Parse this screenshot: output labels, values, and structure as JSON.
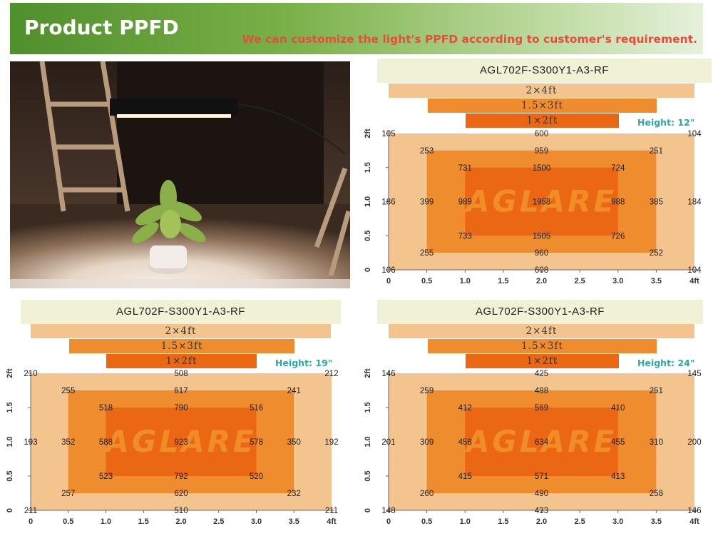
{
  "header": {
    "title": "Product PPFD",
    "subtitle": "We can customize the light's PPFD according to customer's requirement."
  },
  "colors": {
    "outer_zone": "#f4c48e",
    "mid_zone": "#ef8d2e",
    "inner_zone": "#eb6714",
    "height_label": "#2aa9a2",
    "subtitle": "#ee4a3a"
  },
  "panels": [
    {
      "model": "AGL702F-S300Y1-A3-RF",
      "tiers": [
        "2×4ft",
        "1.5×3ft",
        "1×2ft"
      ],
      "height": "Height: 12\"",
      "watermark": "AGLARE",
      "x_ticks": [
        "0",
        "0.5",
        "1.0",
        "1.5",
        "2.0",
        "2.5",
        "3.0",
        "3.5",
        "4ft"
      ],
      "y_ticks": [
        "0",
        "0.5",
        "1.0",
        "1.5",
        "2ft"
      ],
      "points": [
        {
          "x": 0,
          "y": 2,
          "v": "105"
        },
        {
          "x": 2,
          "y": 2,
          "v": "600"
        },
        {
          "x": 4,
          "y": 2,
          "v": "104"
        },
        {
          "x": 0.5,
          "y": 1.75,
          "v": "253"
        },
        {
          "x": 2,
          "y": 1.75,
          "v": "959"
        },
        {
          "x": 3.5,
          "y": 1.75,
          "v": "251"
        },
        {
          "x": 1,
          "y": 1.5,
          "v": "731"
        },
        {
          "x": 2,
          "y": 1.5,
          "v": "1500"
        },
        {
          "x": 3,
          "y": 1.5,
          "v": "724"
        },
        {
          "x": 0,
          "y": 1,
          "v": "186"
        },
        {
          "x": 0.5,
          "y": 1,
          "v": "399"
        },
        {
          "x": 1,
          "y": 1,
          "v": "989"
        },
        {
          "x": 2,
          "y": 1,
          "v": "1958"
        },
        {
          "x": 3,
          "y": 1,
          "v": "988"
        },
        {
          "x": 3.5,
          "y": 1,
          "v": "385"
        },
        {
          "x": 4,
          "y": 1,
          "v": "184"
        },
        {
          "x": 1,
          "y": 0.5,
          "v": "733"
        },
        {
          "x": 2,
          "y": 0.5,
          "v": "1505"
        },
        {
          "x": 3,
          "y": 0.5,
          "v": "726"
        },
        {
          "x": 0.5,
          "y": 0.25,
          "v": "255"
        },
        {
          "x": 2,
          "y": 0.25,
          "v": "960"
        },
        {
          "x": 3.5,
          "y": 0.25,
          "v": "252"
        },
        {
          "x": 0,
          "y": 0,
          "v": "106"
        },
        {
          "x": 2,
          "y": 0,
          "v": "608"
        },
        {
          "x": 4,
          "y": 0,
          "v": "104"
        }
      ]
    },
    {
      "model": "AGL702F-S300Y1-A3-RF",
      "tiers": [
        "2×4ft",
        "1.5×3ft",
        "1×2ft"
      ],
      "height": "Height: 19\"",
      "watermark": "AGLARE",
      "x_ticks": [
        "0",
        "0.5",
        "1.0",
        "1.5",
        "2.0",
        "2.5",
        "3.0",
        "3.5",
        "4ft"
      ],
      "y_ticks": [
        "0",
        "0.5",
        "1.0",
        "1.5",
        "2ft"
      ],
      "points": [
        {
          "x": 0,
          "y": 2,
          "v": "210"
        },
        {
          "x": 2,
          "y": 2,
          "v": "508"
        },
        {
          "x": 4,
          "y": 2,
          "v": "212"
        },
        {
          "x": 0.5,
          "y": 1.75,
          "v": "255"
        },
        {
          "x": 2,
          "y": 1.75,
          "v": "617"
        },
        {
          "x": 3.5,
          "y": 1.75,
          "v": "241"
        },
        {
          "x": 1,
          "y": 1.5,
          "v": "518"
        },
        {
          "x": 2,
          "y": 1.5,
          "v": "790"
        },
        {
          "x": 3,
          "y": 1.5,
          "v": "516"
        },
        {
          "x": 0,
          "y": 1,
          "v": "193"
        },
        {
          "x": 0.5,
          "y": 1,
          "v": "352"
        },
        {
          "x": 1,
          "y": 1,
          "v": "588"
        },
        {
          "x": 2,
          "y": 1,
          "v": "923"
        },
        {
          "x": 3,
          "y": 1,
          "v": "578"
        },
        {
          "x": 3.5,
          "y": 1,
          "v": "350"
        },
        {
          "x": 4,
          "y": 1,
          "v": "192"
        },
        {
          "x": 1,
          "y": 0.5,
          "v": "523"
        },
        {
          "x": 2,
          "y": 0.5,
          "v": "792"
        },
        {
          "x": 3,
          "y": 0.5,
          "v": "520"
        },
        {
          "x": 0.5,
          "y": 0.25,
          "v": "257"
        },
        {
          "x": 2,
          "y": 0.25,
          "v": "620"
        },
        {
          "x": 3.5,
          "y": 0.25,
          "v": "232"
        },
        {
          "x": 0,
          "y": 0,
          "v": "211"
        },
        {
          "x": 2,
          "y": 0,
          "v": "510"
        },
        {
          "x": 4,
          "y": 0,
          "v": "211"
        }
      ]
    },
    {
      "model": "AGL702F-S300Y1-A3-RF",
      "tiers": [
        "2×4ft",
        "1.5×3ft",
        "1×2ft"
      ],
      "height": "Height: 24\"",
      "watermark": "AGLARE",
      "x_ticks": [
        "0",
        "0.5",
        "1.0",
        "1.5",
        "2.0",
        "2.5",
        "3.0",
        "3.5",
        "4ft"
      ],
      "y_ticks": [
        "0",
        "0.5",
        "1.0",
        "1.5",
        "2ft"
      ],
      "points": [
        {
          "x": 0,
          "y": 2,
          "v": "146"
        },
        {
          "x": 2,
          "y": 2,
          "v": "425"
        },
        {
          "x": 4,
          "y": 2,
          "v": "145"
        },
        {
          "x": 0.5,
          "y": 1.75,
          "v": "259"
        },
        {
          "x": 2,
          "y": 1.75,
          "v": "488"
        },
        {
          "x": 3.5,
          "y": 1.75,
          "v": "251"
        },
        {
          "x": 1,
          "y": 1.5,
          "v": "412"
        },
        {
          "x": 2,
          "y": 1.5,
          "v": "569"
        },
        {
          "x": 3,
          "y": 1.5,
          "v": "410"
        },
        {
          "x": 0,
          "y": 1,
          "v": "201"
        },
        {
          "x": 0.5,
          "y": 1,
          "v": "309"
        },
        {
          "x": 1,
          "y": 1,
          "v": "458"
        },
        {
          "x": 2,
          "y": 1,
          "v": "634"
        },
        {
          "x": 3,
          "y": 1,
          "v": "455"
        },
        {
          "x": 3.5,
          "y": 1,
          "v": "310"
        },
        {
          "x": 4,
          "y": 1,
          "v": "200"
        },
        {
          "x": 1,
          "y": 0.5,
          "v": "415"
        },
        {
          "x": 2,
          "y": 0.5,
          "v": "571"
        },
        {
          "x": 3,
          "y": 0.5,
          "v": "413"
        },
        {
          "x": 0.5,
          "y": 0.25,
          "v": "260"
        },
        {
          "x": 2,
          "y": 0.25,
          "v": "490"
        },
        {
          "x": 3.5,
          "y": 0.25,
          "v": "258"
        },
        {
          "x": 0,
          "y": 0,
          "v": "148"
        },
        {
          "x": 2,
          "y": 0,
          "v": "433"
        },
        {
          "x": 4,
          "y": 0,
          "v": "146"
        }
      ]
    }
  ]
}
